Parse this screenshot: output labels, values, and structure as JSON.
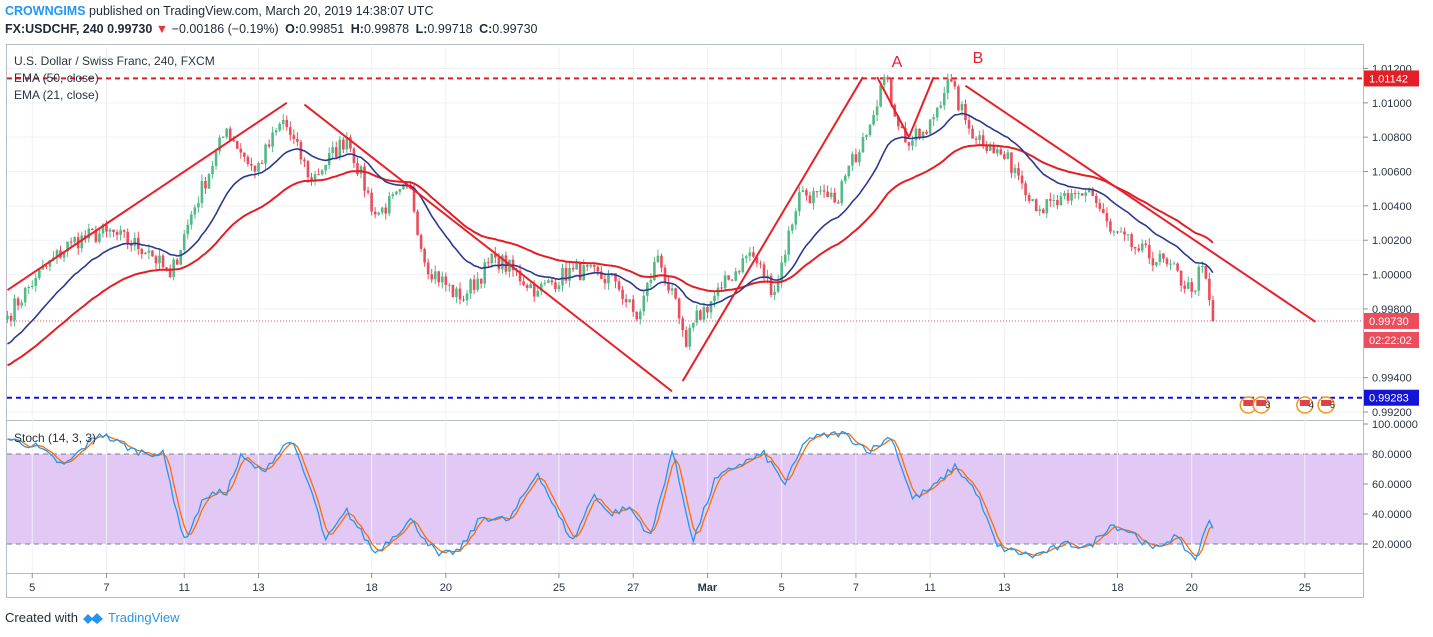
{
  "header": {
    "author": "CROWNGIMS",
    "published_text": "published on TradingView.com, March 20, 2019 14:38:07 UTC",
    "symbol": "FX:USDCHF, 240",
    "last": "0.99730",
    "change_arrow": "▼",
    "change": "−0.00186 (−0.19%)",
    "o_label": "O:",
    "o": "0.99851",
    "h_label": "H:",
    "h": "0.99878",
    "l_label": "L:",
    "l": "0.99718",
    "c_label": "C:",
    "c": "0.99730"
  },
  "legend": {
    "title": "U.S. Dollar / Swiss Franc, 240, FXCM",
    "ema50": "EMA (50, close)",
    "ema21": "EMA (21, close)",
    "stoch": "Stoch (14, 3, 3)"
  },
  "annotations": {
    "a": "A",
    "b": "B"
  },
  "badges": {
    "resistance": "1.01142",
    "support": "0.99283",
    "price": "0.99730",
    "countdown": "02:22:02"
  },
  "events": [
    "2",
    "3",
    "4",
    "5"
  ],
  "colors": {
    "up": "#53b987",
    "down": "#eb4d5c",
    "ema21": "#2b3a8f",
    "ema50": "#e31e24",
    "trend": "#e8202a",
    "support": "#1414d6",
    "stoch_k": "#2196f3",
    "stoch_d": "#ff6d00",
    "stoch_band": "#e2c8f5"
  },
  "footer": {
    "created": "Created with",
    "brand": "TradingView"
  },
  "chart_data": {
    "type": "candlestick",
    "title": "U.S. Dollar / Swiss Franc, 240, FXCM",
    "ylim": [
      0.99165,
      1.01325
    ],
    "y_ticks": [
      "1.01200",
      "1.01000",
      "1.00800",
      "1.00600",
      "1.00400",
      "1.00200",
      "1.00000",
      "0.99800",
      "0.99400",
      "0.99200"
    ],
    "x_ticks": [
      {
        "label": "5",
        "bar": 7
      },
      {
        "label": "7",
        "bar": 28
      },
      {
        "label": "11",
        "bar": 50
      },
      {
        "label": "13",
        "bar": 71
      },
      {
        "label": "18",
        "bar": 103
      },
      {
        "label": "20",
        "bar": 124
      },
      {
        "label": "25",
        "bar": 156
      },
      {
        "label": "27",
        "bar": 177
      },
      {
        "label": "Mar",
        "bar": 198
      },
      {
        "label": "5",
        "bar": 219
      },
      {
        "label": "7",
        "bar": 240
      },
      {
        "label": "11",
        "bar": 261
      },
      {
        "label": "13",
        "bar": 282
      },
      {
        "label": "18",
        "bar": 314
      },
      {
        "label": "20",
        "bar": 335
      },
      {
        "label": "25",
        "bar": 367
      }
    ],
    "keypoints": [
      {
        "bar": 0,
        "p": 0.9976
      },
      {
        "bar": 8,
        "p": 0.9998
      },
      {
        "bar": 18,
        "p": 1.0019
      },
      {
        "bar": 28,
        "p": 1.0025
      },
      {
        "bar": 40,
        "p": 1.0014
      },
      {
        "bar": 46,
        "p": 0.99985
      },
      {
        "bar": 52,
        "p": 1.0035
      },
      {
        "bar": 62,
        "p": 1.0085
      },
      {
        "bar": 70,
        "p": 1.006
      },
      {
        "bar": 78,
        "p": 1.009
      },
      {
        "bar": 86,
        "p": 1.0055
      },
      {
        "bar": 96,
        "p": 1.008
      },
      {
        "bar": 104,
        "p": 1.0035
      },
      {
        "bar": 114,
        "p": 1.005
      },
      {
        "bar": 118,
        "p": 1.0007
      },
      {
        "bar": 128,
        "p": 0.99855
      },
      {
        "bar": 138,
        "p": 1.001
      },
      {
        "bar": 150,
        "p": 0.99905
      },
      {
        "bar": 160,
        "p": 1.0003
      },
      {
        "bar": 172,
        "p": 0.9996
      },
      {
        "bar": 178,
        "p": 0.9974
      },
      {
        "bar": 184,
        "p": 1.0011
      },
      {
        "bar": 190,
        "p": 0.99745
      },
      {
        "bar": 192,
        "p": 0.9958
      },
      {
        "bar": 194,
        "p": 0.9972
      },
      {
        "bar": 202,
        "p": 0.9992
      },
      {
        "bar": 210,
        "p": 1.0013
      },
      {
        "bar": 217,
        "p": 0.999
      },
      {
        "bar": 224,
        "p": 1.0048
      },
      {
        "bar": 234,
        "p": 1.0042
      },
      {
        "bar": 242,
        "p": 1.008
      },
      {
        "bar": 248,
        "p": 1.0115
      },
      {
        "bar": 254,
        "p": 1.0077
      },
      {
        "bar": 260,
        "p": 1.0082
      },
      {
        "bar": 266,
        "p": 1.0114
      },
      {
        "bar": 272,
        "p": 1.0085
      },
      {
        "bar": 278,
        "p": 1.0075
      },
      {
        "bar": 285,
        "p": 1.0062
      },
      {
        "bar": 292,
        "p": 1.0038
      },
      {
        "bar": 300,
        "p": 1.0043
      },
      {
        "bar": 306,
        "p": 1.005
      },
      {
        "bar": 312,
        "p": 1.0025
      },
      {
        "bar": 320,
        "p": 1.0014
      },
      {
        "bar": 328,
        "p": 1.0006
      },
      {
        "bar": 335,
        "p": 0.999
      },
      {
        "bar": 338,
        "p": 1.0005
      },
      {
        "bar": 341,
        "p": 0.9973
      }
    ],
    "trendlines": [
      {
        "from": {
          "bar": 0,
          "p": 0.9991
        },
        "to": {
          "bar": 79,
          "p": 1.01
        }
      },
      {
        "from": {
          "bar": 84,
          "p": 1.0099
        },
        "to": {
          "bar": 188,
          "p": 0.9932
        }
      },
      {
        "from": {
          "bar": 191,
          "p": 0.9938
        },
        "to": {
          "bar": 242,
          "p": 1.0115
        }
      },
      {
        "from": {
          "bar": 246,
          "p": 1.0115
        },
        "to": {
          "bar": 255,
          "p": 1.008
        }
      },
      {
        "from": {
          "bar": 255,
          "p": 1.008
        },
        "to": {
          "bar": 262,
          "p": 1.0115
        }
      },
      {
        "from": {
          "bar": 271,
          "p": 1.011
        },
        "to": {
          "bar": 370,
          "p": 0.99725
        }
      }
    ],
    "horizontal_levels": [
      {
        "name": "resistance",
        "p": 1.01142
      },
      {
        "name": "support",
        "p": 0.99283
      }
    ],
    "stochastic": {
      "ylim": [
        0,
        100
      ],
      "y_ticks": [
        "100.0000",
        "80.0000",
        "60.0000",
        "40.0000",
        "20.0000"
      ],
      "band": [
        20,
        80
      ],
      "keypoints_k": [
        {
          "bar": 0,
          "v": 90
        },
        {
          "bar": 8,
          "v": 85
        },
        {
          "bar": 16,
          "v": 72
        },
        {
          "bar": 26,
          "v": 94
        },
        {
          "bar": 36,
          "v": 82
        },
        {
          "bar": 44,
          "v": 80
        },
        {
          "bar": 50,
          "v": 22
        },
        {
          "bar": 56,
          "v": 52
        },
        {
          "bar": 62,
          "v": 55
        },
        {
          "bar": 66,
          "v": 78
        },
        {
          "bar": 72,
          "v": 68
        },
        {
          "bar": 80,
          "v": 90
        },
        {
          "bar": 86,
          "v": 55
        },
        {
          "bar": 90,
          "v": 22
        },
        {
          "bar": 96,
          "v": 42
        },
        {
          "bar": 104,
          "v": 14
        },
        {
          "bar": 114,
          "v": 36
        },
        {
          "bar": 122,
          "v": 12
        },
        {
          "bar": 128,
          "v": 16
        },
        {
          "bar": 134,
          "v": 38
        },
        {
          "bar": 142,
          "v": 36
        },
        {
          "bar": 150,
          "v": 68
        },
        {
          "bar": 156,
          "v": 38
        },
        {
          "bar": 160,
          "v": 22
        },
        {
          "bar": 166,
          "v": 54
        },
        {
          "bar": 170,
          "v": 40
        },
        {
          "bar": 176,
          "v": 44
        },
        {
          "bar": 182,
          "v": 25
        },
        {
          "bar": 188,
          "v": 82
        },
        {
          "bar": 194,
          "v": 22
        },
        {
          "bar": 200,
          "v": 62
        },
        {
          "bar": 206,
          "v": 72
        },
        {
          "bar": 214,
          "v": 80
        },
        {
          "bar": 220,
          "v": 60
        },
        {
          "bar": 226,
          "v": 90
        },
        {
          "bar": 236,
          "v": 94
        },
        {
          "bar": 244,
          "v": 82
        },
        {
          "bar": 250,
          "v": 92
        },
        {
          "bar": 256,
          "v": 50
        },
        {
          "bar": 262,
          "v": 58
        },
        {
          "bar": 268,
          "v": 72
        },
        {
          "bar": 274,
          "v": 55
        },
        {
          "bar": 280,
          "v": 18
        },
        {
          "bar": 290,
          "v": 12
        },
        {
          "bar": 300,
          "v": 20
        },
        {
          "bar": 306,
          "v": 18
        },
        {
          "bar": 312,
          "v": 33
        },
        {
          "bar": 318,
          "v": 28
        },
        {
          "bar": 324,
          "v": 16
        },
        {
          "bar": 330,
          "v": 25
        },
        {
          "bar": 336,
          "v": 10
        },
        {
          "bar": 340,
          "v": 36
        },
        {
          "bar": 343,
          "v": 26
        }
      ]
    }
  }
}
